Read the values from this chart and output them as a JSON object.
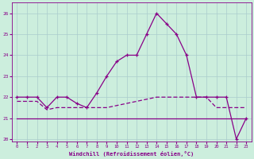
{
  "xlabel": "Windchill (Refroidissement éolien,°C)",
  "background_color": "#cceedd",
  "grid_color": "#aacccc",
  "line_color": "#880088",
  "x_hours": [
    0,
    1,
    2,
    3,
    4,
    5,
    6,
    7,
    8,
    9,
    10,
    11,
    12,
    13,
    14,
    15,
    16,
    17,
    18,
    19,
    20,
    21,
    22,
    23
  ],
  "temp_line": [
    22.0,
    22.0,
    22.0,
    21.5,
    22.0,
    22.0,
    21.7,
    21.5,
    22.2,
    23.0,
    23.7,
    24.0,
    24.0,
    25.0,
    26.0,
    25.5,
    25.0,
    24.0,
    22.0,
    22.0,
    22.0,
    22.0,
    20.0,
    21.0
  ],
  "flat_line": [
    21.0,
    21.0,
    21.0,
    21.0,
    21.0,
    21.0,
    21.0,
    21.0,
    21.0,
    21.0,
    21.0,
    21.0,
    21.0,
    21.0,
    21.0,
    21.0,
    21.0,
    21.0,
    21.0,
    21.0,
    21.0,
    21.0,
    21.0,
    21.0
  ],
  "dashed_line": [
    21.8,
    21.8,
    21.8,
    21.4,
    21.5,
    21.5,
    21.5,
    21.5,
    21.5,
    21.5,
    21.6,
    21.7,
    21.8,
    21.9,
    22.0,
    22.0,
    22.0,
    22.0,
    22.0,
    22.0,
    21.5,
    21.5,
    21.5,
    21.5
  ],
  "xlim": [
    -0.5,
    23.5
  ],
  "ylim": [
    19.9,
    26.5
  ],
  "yticks": [
    20,
    21,
    22,
    23,
    24,
    25,
    26
  ],
  "xticks": [
    0,
    1,
    2,
    3,
    4,
    5,
    6,
    7,
    8,
    9,
    10,
    11,
    12,
    13,
    14,
    15,
    16,
    17,
    18,
    19,
    20,
    21,
    22,
    23
  ]
}
